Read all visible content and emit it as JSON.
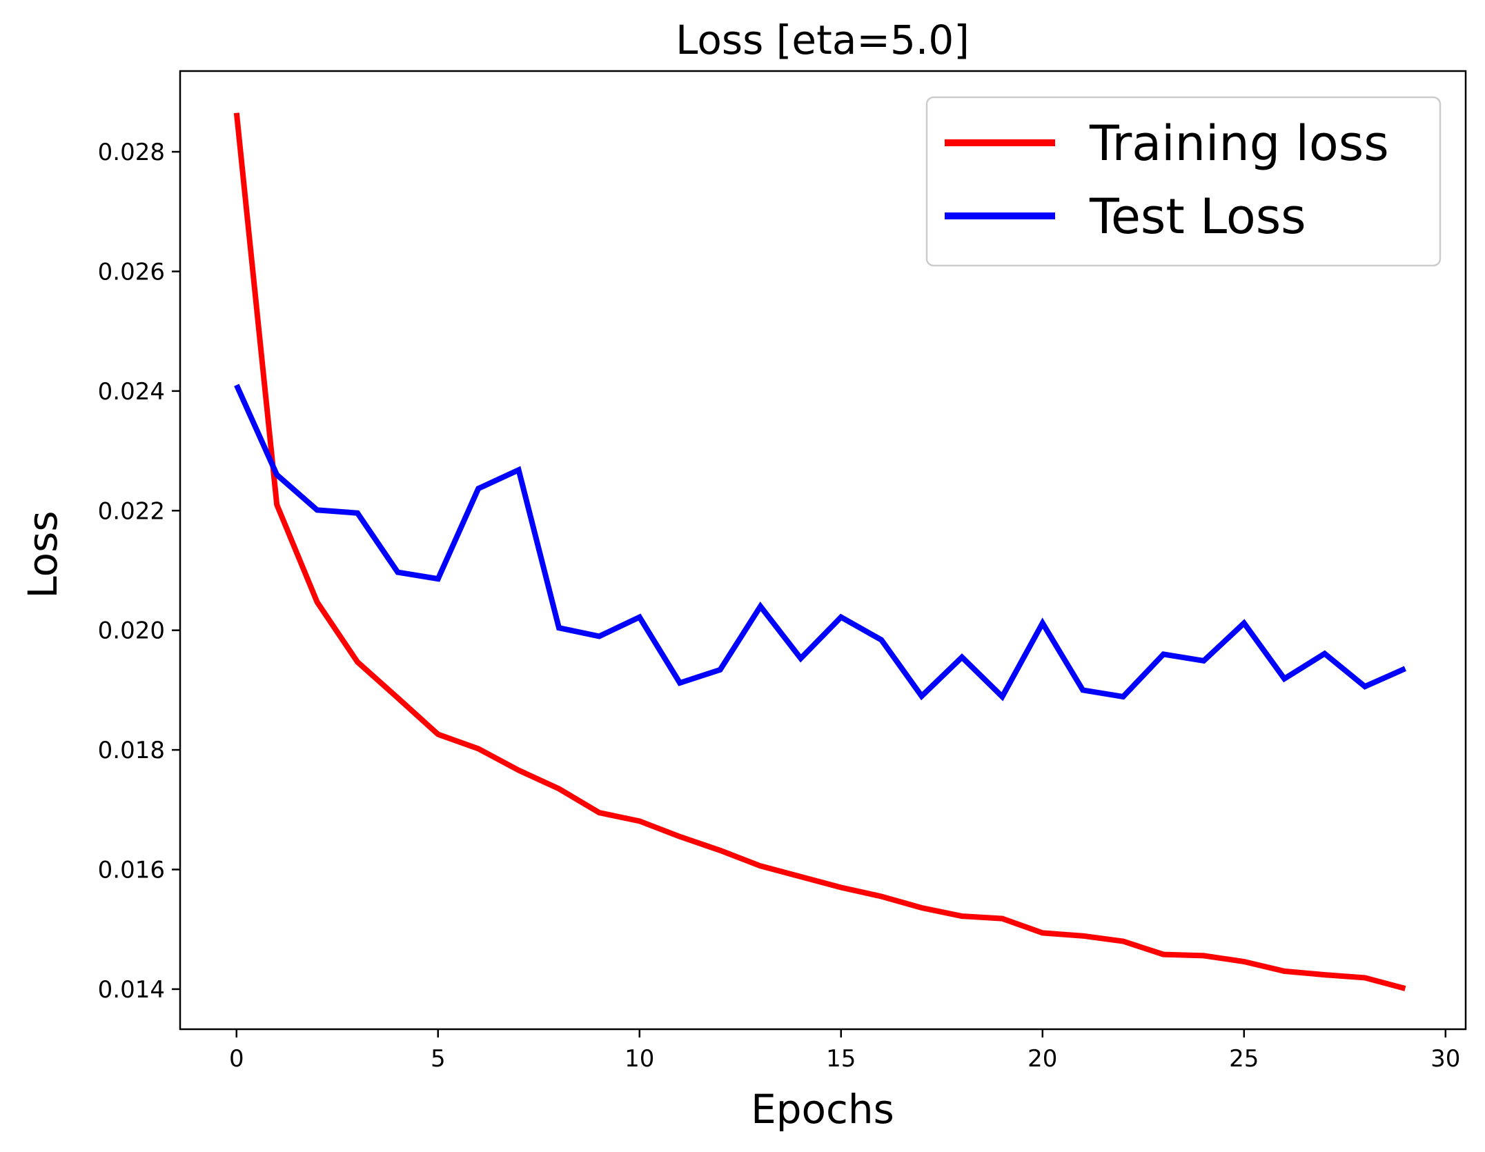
{
  "chart_data": {
    "type": "line",
    "title": "Loss [eta=5.0]",
    "xlabel": "Epochs",
    "ylabel": "Loss",
    "xlim": [
      -1.4,
      30.5
    ],
    "ylim": [
      0.01333,
      0.02935
    ],
    "xticks": [
      0,
      5,
      10,
      15,
      20,
      25,
      30
    ],
    "yticks": [
      0.014,
      0.016,
      0.018,
      0.02,
      0.022,
      0.024,
      0.026,
      0.028
    ],
    "xtick_labels": [
      "0",
      "5",
      "10",
      "15",
      "20",
      "25",
      "30"
    ],
    "ytick_labels": [
      "0.014",
      "0.016",
      "0.018",
      "0.020",
      "0.022",
      "0.024",
      "0.026",
      "0.028"
    ],
    "grid": false,
    "legend_position": "top-right",
    "x": [
      0,
      1,
      2,
      3,
      4,
      5,
      6,
      7,
      8,
      9,
      10,
      11,
      12,
      13,
      14,
      15,
      16,
      17,
      18,
      19,
      20,
      21,
      22,
      23,
      24,
      25,
      26,
      27,
      28,
      29
    ],
    "series": [
      {
        "name": "Training loss",
        "color": "#ff0000",
        "values": [
          0.02865,
          0.0221,
          0.02047,
          0.01947,
          0.01887,
          0.01826,
          0.01802,
          0.01766,
          0.01735,
          0.01695,
          0.01681,
          0.01655,
          0.01632,
          0.01606,
          0.01588,
          0.0157,
          0.01555,
          0.01536,
          0.01522,
          0.01518,
          0.01494,
          0.01489,
          0.0148,
          0.01458,
          0.01456,
          0.01446,
          0.0143,
          0.01424,
          0.01419,
          0.01401
        ]
      },
      {
        "name": "Test Loss",
        "color": "#0000ff",
        "values": [
          0.0241,
          0.0226,
          0.02201,
          0.02196,
          0.02097,
          0.02086,
          0.02237,
          0.02268,
          0.02004,
          0.0199,
          0.02022,
          0.01912,
          0.01934,
          0.0204,
          0.01953,
          0.02022,
          0.01984,
          0.0189,
          0.01955,
          0.01889,
          0.02012,
          0.019,
          0.01889,
          0.0196,
          0.01949,
          0.02012,
          0.01919,
          0.01961,
          0.01906,
          0.01936
        ]
      }
    ]
  }
}
